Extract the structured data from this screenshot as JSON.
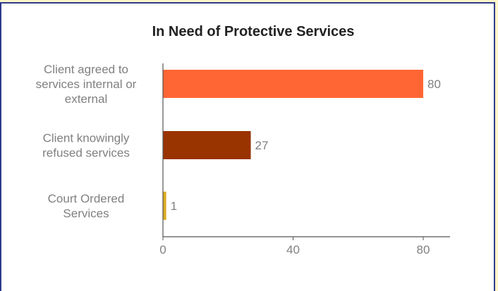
{
  "chart_data": {
    "type": "bar",
    "orientation": "horizontal",
    "title": "In Need of Protective Services",
    "xlabel": "",
    "ylabel": "",
    "categories": [
      [
        "Client agreed to",
        "services internal or",
        "external"
      ],
      [
        "Client knowingly",
        "refused services"
      ],
      [
        "Court Ordered",
        "Services"
      ]
    ],
    "values": [
      80,
      27,
      1
    ],
    "data_labels": [
      "80",
      "27",
      "1"
    ],
    "colors": [
      "#ff6633",
      "#993300",
      "#ddaa22"
    ],
    "xlim": [
      0,
      80
    ],
    "xticks": [
      0,
      40,
      80
    ],
    "grid": false,
    "legend": "none"
  }
}
